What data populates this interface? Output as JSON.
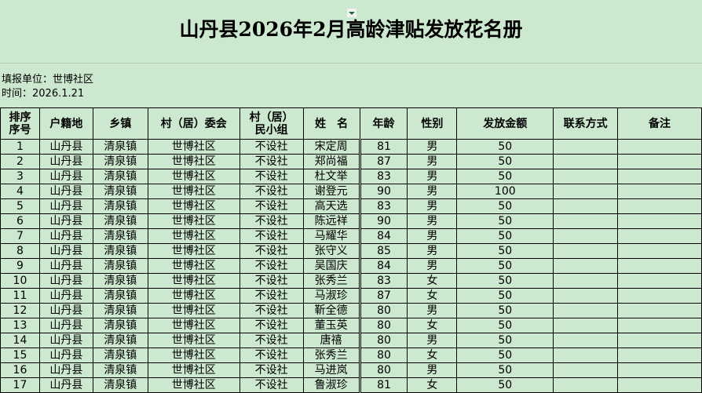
{
  "title": "山丹县2026年2月高龄津贴发放花名册",
  "unit": "填报单位：世博社区",
  "time": "时间：2026.1.21",
  "columns": [
    "排序\n序号",
    "户籍地",
    "乡镇",
    "村（居）委会",
    "村（居）\n民小组",
    "姓　名",
    "年龄",
    "性别",
    "发放金额",
    "联系方式",
    "备注"
  ],
  "rows": [
    [
      "1",
      "山丹县",
      "清泉镇",
      "世博社区",
      "不设社",
      "宋定周",
      "81",
      "男",
      "50",
      "",
      ""
    ],
    [
      "2",
      "山丹县",
      "清泉镇",
      "世博社区",
      "不设社",
      "郑尚福",
      "87",
      "男",
      "50",
      "",
      ""
    ],
    [
      "3",
      "山丹县",
      "清泉镇",
      "世博社区",
      "不设社",
      "杜文举",
      "83",
      "男",
      "50",
      "",
      ""
    ],
    [
      "4",
      "山丹县",
      "清泉镇",
      "世博社区",
      "不设社",
      "谢登元",
      "90",
      "男",
      "100",
      "",
      ""
    ],
    [
      "5",
      "山丹县",
      "清泉镇",
      "世博社区",
      "不设社",
      "高天选",
      "83",
      "男",
      "50",
      "",
      ""
    ],
    [
      "6",
      "山丹县",
      "清泉镇",
      "世博社区",
      "不设社",
      "陈远祥",
      "90",
      "男",
      "50",
      "",
      ""
    ],
    [
      "7",
      "山丹县",
      "清泉镇",
      "世博社区",
      "不设社",
      "马耀华",
      "84",
      "男",
      "50",
      "",
      ""
    ],
    [
      "8",
      "山丹县",
      "清泉镇",
      "世博社区",
      "不设社",
      "张守义",
      "85",
      "男",
      "50",
      "",
      ""
    ],
    [
      "9",
      "山丹县",
      "清泉镇",
      "世博社区",
      "不设社",
      "吴国庆",
      "84",
      "男",
      "50",
      "",
      ""
    ],
    [
      "10",
      "山丹县",
      "清泉镇",
      "世博社区",
      "不设社",
      "张秀兰",
      "83",
      "女",
      "50",
      "",
      ""
    ],
    [
      "11",
      "山丹县",
      "清泉镇",
      "世博社区",
      "不设社",
      "马淑珍",
      "87",
      "女",
      "50",
      "",
      ""
    ],
    [
      "12",
      "山丹县",
      "清泉镇",
      "世博社区",
      "不设社",
      "靳全德",
      "80",
      "男",
      "50",
      "",
      ""
    ],
    [
      "13",
      "山丹县",
      "清泉镇",
      "世博社区",
      "不设社",
      "董玉英",
      "80",
      "女",
      "50",
      "",
      ""
    ],
    [
      "14",
      "山丹县",
      "清泉镇",
      "世博社区",
      "不设社",
      "唐禧",
      "80",
      "男",
      "50",
      "",
      ""
    ],
    [
      "15",
      "山丹县",
      "清泉镇",
      "世博社区",
      "不设社",
      "张秀兰",
      "80",
      "女",
      "50",
      "",
      ""
    ],
    [
      "16",
      "山丹县",
      "清泉镇",
      "世博社区",
      "不设社",
      "马进岚",
      "80",
      "男",
      "50",
      "",
      ""
    ],
    [
      "17",
      "山丹县",
      "清泉镇",
      "世博社区",
      "不设社",
      "鲁淑珍",
      "81",
      "女",
      "50",
      "",
      ""
    ]
  ]
}
